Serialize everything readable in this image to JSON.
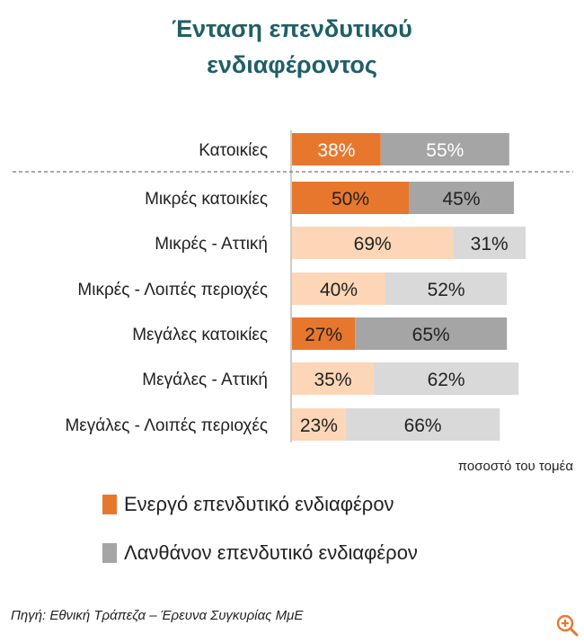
{
  "chart_data": {
    "type": "bar",
    "orientation": "horizontal",
    "stacked": true,
    "title_lines": [
      "Ένταση επενδυτικού",
      "ενδιαφέροντος"
    ],
    "categories": [
      "Κατοικίες",
      "Μικρές κατοικίες",
      "Μικρές - Αττική",
      "Μικρές - Λοιπές περιοχές",
      "Μεγάλες κατοικίες",
      "Μεγάλες - Αττική",
      "Μεγάλες - Λοιπές περιοχές"
    ],
    "series": [
      {
        "name": "Ενεργό επενδυτικό ενδιαφέρον",
        "values": [
          38,
          50,
          69,
          40,
          27,
          35,
          23
        ]
      },
      {
        "name": "Λανθάνον επενδυτικό ενδιαφέρον",
        "values": [
          55,
          45,
          31,
          52,
          65,
          62,
          66
        ]
      }
    ],
    "data_labels": [
      [
        "38%",
        "50%",
        "69%",
        "40%",
        "27%",
        "35%",
        "23%"
      ],
      [
        "55%",
        "45%",
        "31%",
        "52%",
        "65%",
        "62%",
        "66%"
      ]
    ],
    "row_style": [
      "strong",
      "strong",
      "light",
      "light",
      "strong",
      "light",
      "light"
    ],
    "unit_label": "ποσοστό του τομέα",
    "xlim": [
      0,
      100
    ]
  },
  "legend": {
    "active": "Ενεργό επενδυτικό ενδιαφέρον",
    "latent": "Λανθάνον επενδυτικό ενδιαφέρον"
  },
  "source": "Πηγή: Εθνική Τράπεζα – Έρευνα Συγκυρίας ΜμΕ",
  "colors": {
    "title": "#1f5f66",
    "active_strong": "#e8772e",
    "active_light": "#fcd6b6",
    "latent_strong": "#a5a5a5",
    "latent_light": "#d9d9d9",
    "label_on_strong_top": "#ffffff",
    "label_default": "#222222",
    "zoom": "#e8772e"
  },
  "icons": {
    "zoom": "zoom-in-icon"
  }
}
